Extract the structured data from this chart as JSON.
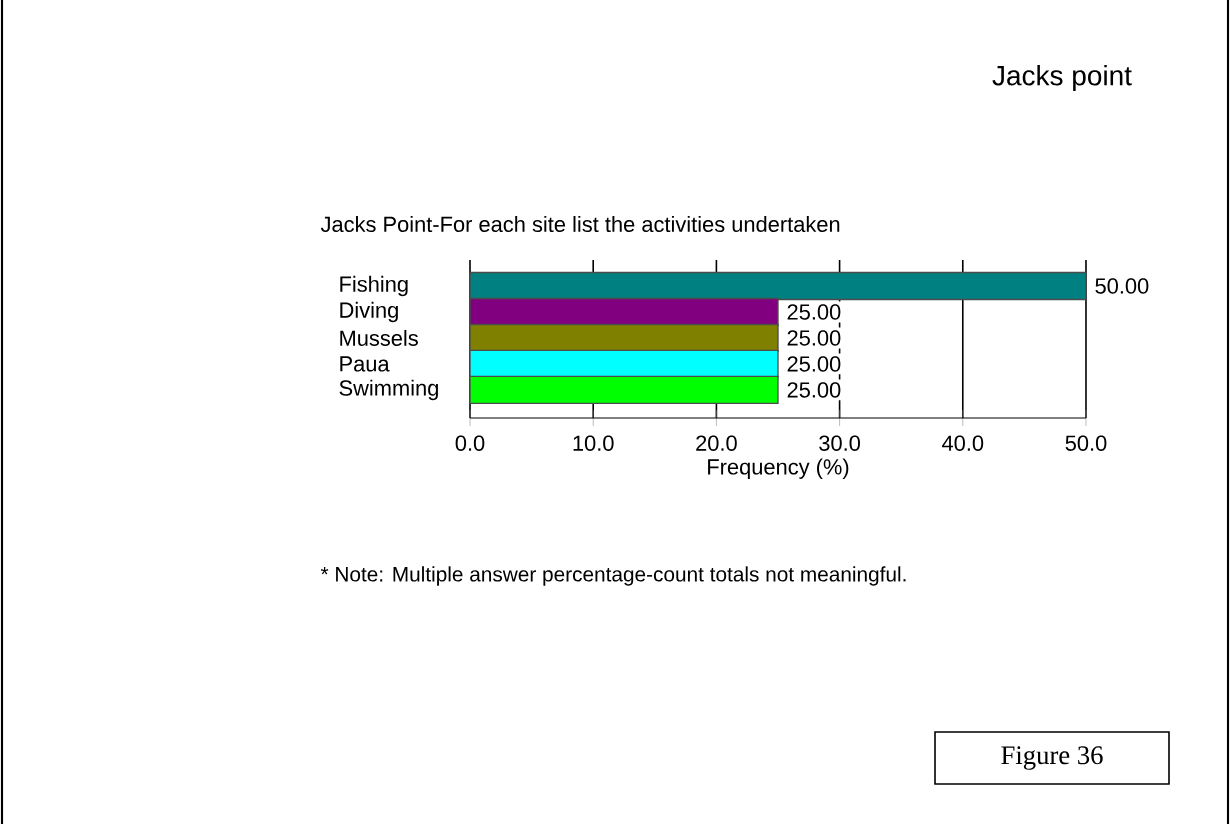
{
  "chart_data": {
    "type": "bar",
    "orientation": "horizontal",
    "title": "Jacks point",
    "subtitle": "Jacks Point-For each site list the activities undertaken",
    "categories": [
      "Fishing",
      "Diving",
      "Mussels",
      "Paua",
      "Swimming"
    ],
    "values": [
      50,
      25,
      25,
      25,
      25
    ],
    "value_labels": [
      "50.00",
      "25.00",
      "25.00",
      "25.00",
      "25.00"
    ],
    "colors": [
      "#008080",
      "#800080",
      "#808000",
      "#00ffff",
      "#00ff00"
    ],
    "xlabel": "Frequency (%)",
    "xlim": [
      0,
      50
    ],
    "xticks": [
      {
        "value": 0,
        "label": "0.0"
      },
      {
        "value": 10,
        "label": "10.0"
      },
      {
        "value": 20,
        "label": "20.0"
      },
      {
        "value": 30,
        "label": "30.0"
      },
      {
        "value": 40,
        "label": "40.0"
      },
      {
        "value": 50,
        "label": "50.0"
      }
    ],
    "grid": "x",
    "annotations": [
      "* Note:  Multiple answer percentage-count totals not meaningful.",
      "Figure 36"
    ]
  }
}
